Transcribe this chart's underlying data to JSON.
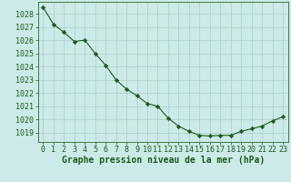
{
  "x": [
    0,
    1,
    2,
    3,
    4,
    5,
    6,
    7,
    8,
    9,
    10,
    11,
    12,
    13,
    14,
    15,
    16,
    17,
    18,
    19,
    20,
    21,
    22,
    23
  ],
  "y": [
    1028.5,
    1027.2,
    1026.6,
    1025.9,
    1026.0,
    1025.0,
    1024.1,
    1023.0,
    1022.3,
    1021.8,
    1021.2,
    1021.0,
    1020.1,
    1019.5,
    1019.1,
    1018.8,
    1018.75,
    1018.8,
    1018.8,
    1019.1,
    1019.3,
    1019.5,
    1019.9,
    1020.2
  ],
  "line_color": "#1a5c1a",
  "marker": "D",
  "marker_size": 2.2,
  "bg_color": "#cceae7",
  "grid_color": "#aacccc",
  "xlabel": "Graphe pression niveau de la mer (hPa)",
  "xlabel_fontsize": 7,
  "yticks": [
    1019,
    1020,
    1021,
    1022,
    1023,
    1024,
    1025,
    1026,
    1027,
    1028
  ],
  "ylim": [
    1018.3,
    1028.9
  ],
  "xlim": [
    -0.5,
    23.5
  ],
  "tick_fontsize": 6,
  "axis_color": "#2a6a2a",
  "tick_color": "#1a5c1a",
  "label_color": "#1a5c1a"
}
